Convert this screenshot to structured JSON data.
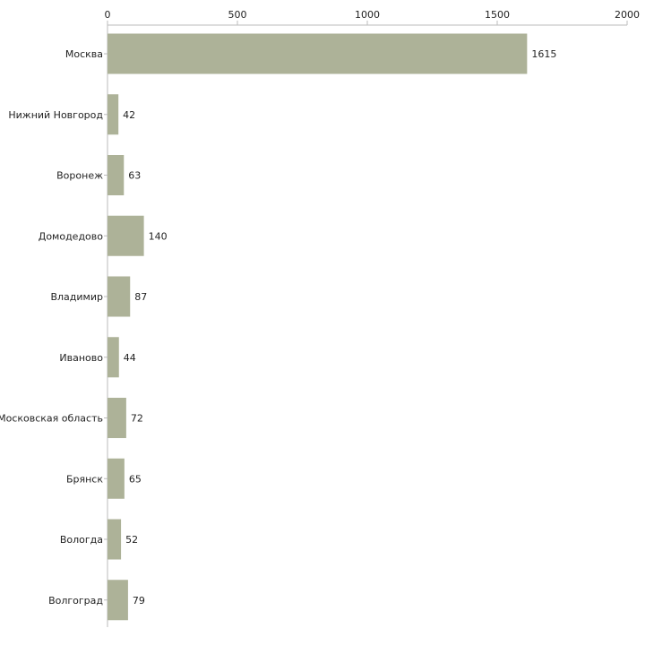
{
  "chart_data": {
    "type": "bar",
    "orientation": "horizontal",
    "categories": [
      "Москва",
      "Нижний Новгород",
      "Воронеж",
      "Домодедово",
      "Владимир",
      "Иваново",
      "Московская область",
      "Брянск",
      "Вологда",
      "Волгоград"
    ],
    "values": [
      1615,
      42,
      63,
      140,
      87,
      44,
      72,
      65,
      52,
      79
    ],
    "xlim": [
      0,
      2000
    ],
    "xticks": [
      0,
      500,
      1000,
      1500,
      2000
    ],
    "title": "",
    "xlabel": "",
    "ylabel": "",
    "grid": false,
    "bar_color": "#adb298",
    "axis_color": "#bbbbbb",
    "text_color": "#222222"
  }
}
